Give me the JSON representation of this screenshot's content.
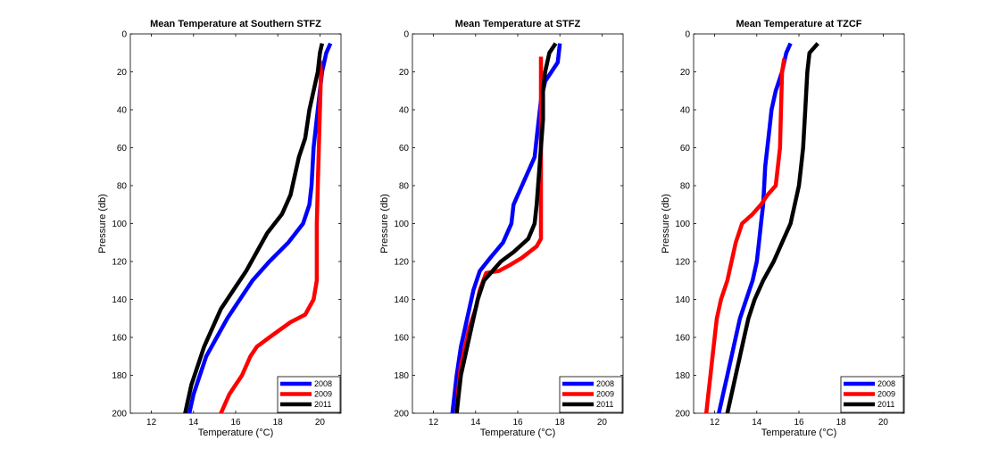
{
  "chart_data": [
    {
      "type": "line",
      "title": "Mean Temperature at Southern STFZ",
      "xlabel": "Temperature (°C)",
      "ylabel": "Pressure (db)",
      "xlim": [
        11,
        21
      ],
      "ylim": [
        0,
        200
      ],
      "y_reversed": true,
      "xticks": [
        12,
        14,
        16,
        18,
        20
      ],
      "yticks": [
        0,
        20,
        40,
        60,
        80,
        100,
        120,
        140,
        160,
        180,
        200
      ],
      "legend": "bottom-right",
      "series": [
        {
          "name": "2008",
          "color": "#0000ff",
          "points": [
            [
              20.5,
              5
            ],
            [
              20.3,
              10
            ],
            [
              20.1,
              20
            ],
            [
              20.0,
              30
            ],
            [
              19.9,
              40
            ],
            [
              19.7,
              60
            ],
            [
              19.6,
              80
            ],
            [
              19.5,
              90
            ],
            [
              19.2,
              100
            ],
            [
              18.5,
              110
            ],
            [
              17.6,
              120
            ],
            [
              16.8,
              130
            ],
            [
              16.2,
              140
            ],
            [
              15.6,
              150
            ],
            [
              15.1,
              160
            ],
            [
              14.6,
              170
            ],
            [
              14.3,
              180
            ],
            [
              14.0,
              190
            ],
            [
              13.8,
              200
            ]
          ]
        },
        {
          "name": "2009",
          "color": "#ff0000",
          "points": [
            [
              20.0,
              14
            ],
            [
              20.05,
              20
            ],
            [
              20.0,
              40
            ],
            [
              19.95,
              60
            ],
            [
              19.9,
              80
            ],
            [
              19.85,
              100
            ],
            [
              19.85,
              120
            ],
            [
              19.85,
              130
            ],
            [
              19.7,
              140
            ],
            [
              19.3,
              148
            ],
            [
              18.6,
              152
            ],
            [
              18.1,
              156
            ],
            [
              17.6,
              160
            ],
            [
              17.0,
              165
            ],
            [
              16.7,
              170
            ],
            [
              16.3,
              180
            ],
            [
              16.0,
              185
            ],
            [
              15.7,
              190
            ],
            [
              15.3,
              200
            ]
          ]
        },
        {
          "name": "2011",
          "color": "#000000",
          "points": [
            [
              20.1,
              5
            ],
            [
              20.0,
              10
            ],
            [
              19.9,
              20
            ],
            [
              19.7,
              30
            ],
            [
              19.5,
              40
            ],
            [
              19.3,
              55
            ],
            [
              19.0,
              65
            ],
            [
              18.8,
              75
            ],
            [
              18.6,
              85
            ],
            [
              18.2,
              95
            ],
            [
              17.5,
              105
            ],
            [
              17.0,
              115
            ],
            [
              16.5,
              125
            ],
            [
              15.9,
              135
            ],
            [
              15.3,
              145
            ],
            [
              14.9,
              155
            ],
            [
              14.5,
              165
            ],
            [
              14.2,
              175
            ],
            [
              13.9,
              185
            ],
            [
              13.7,
              195
            ],
            [
              13.6,
              200
            ]
          ]
        }
      ]
    },
    {
      "type": "line",
      "title": "Mean Temperature at STFZ",
      "xlabel": "Temperature (°C)",
      "ylabel": "Pressure (db)",
      "xlim": [
        11,
        21
      ],
      "ylim": [
        0,
        200
      ],
      "y_reversed": true,
      "xticks": [
        12,
        14,
        16,
        18,
        20
      ],
      "yticks": [
        0,
        20,
        40,
        60,
        80,
        100,
        120,
        140,
        160,
        180,
        200
      ],
      "legend": "bottom-right",
      "series": [
        {
          "name": "2008",
          "color": "#0000ff",
          "points": [
            [
              18.0,
              5
            ],
            [
              17.9,
              15
            ],
            [
              17.3,
              25
            ],
            [
              17.1,
              35
            ],
            [
              17.0,
              45
            ],
            [
              16.9,
              55
            ],
            [
              16.8,
              65
            ],
            [
              16.4,
              75
            ],
            [
              16.0,
              85
            ],
            [
              15.8,
              90
            ],
            [
              15.7,
              100
            ],
            [
              15.3,
              110
            ],
            [
              14.7,
              118
            ],
            [
              14.2,
              125
            ],
            [
              13.9,
              135
            ],
            [
              13.7,
              145
            ],
            [
              13.5,
              155
            ],
            [
              13.3,
              165
            ],
            [
              13.1,
              180
            ],
            [
              13.0,
              190
            ],
            [
              12.9,
              200
            ]
          ]
        },
        {
          "name": "2009",
          "color": "#ff0000",
          "points": [
            [
              17.1,
              12
            ],
            [
              17.1,
              40
            ],
            [
              17.1,
              60
            ],
            [
              17.1,
              80
            ],
            [
              17.1,
              100
            ],
            [
              17.1,
              108
            ],
            [
              16.9,
              112
            ],
            [
              16.2,
              118
            ],
            [
              15.6,
              122
            ],
            [
              15.1,
              125
            ],
            [
              14.5,
              126
            ],
            [
              14.2,
              135
            ],
            [
              14.0,
              145
            ],
            [
              13.7,
              155
            ],
            [
              13.5,
              165
            ],
            [
              13.3,
              175
            ],
            [
              13.2,
              185
            ],
            [
              13.1,
              200
            ]
          ]
        },
        {
          "name": "2011",
          "color": "#000000",
          "points": [
            [
              17.8,
              5
            ],
            [
              17.5,
              10
            ],
            [
              17.3,
              20
            ],
            [
              17.2,
              30
            ],
            [
              17.2,
              45
            ],
            [
              17.1,
              60
            ],
            [
              17.0,
              75
            ],
            [
              16.9,
              90
            ],
            [
              16.8,
              100
            ],
            [
              16.5,
              108
            ],
            [
              15.8,
              115
            ],
            [
              15.2,
              120
            ],
            [
              14.8,
              125
            ],
            [
              14.4,
              130
            ],
            [
              14.1,
              140
            ],
            [
              13.9,
              150
            ],
            [
              13.7,
              160
            ],
            [
              13.5,
              170
            ],
            [
              13.3,
              180
            ],
            [
              13.2,
              190
            ],
            [
              13.1,
              200
            ]
          ]
        }
      ]
    },
    {
      "type": "line",
      "title": "Mean Temperature at TZCF",
      "xlabel": "Temperature (°C)",
      "ylabel": "Pressure (db)",
      "xlim": [
        11,
        21
      ],
      "ylim": [
        0,
        200
      ],
      "y_reversed": true,
      "xticks": [
        12,
        14,
        16,
        18,
        20
      ],
      "yticks": [
        0,
        20,
        40,
        60,
        80,
        100,
        120,
        140,
        160,
        180,
        200
      ],
      "legend": "bottom-right",
      "series": [
        {
          "name": "2008",
          "color": "#0000ff",
          "points": [
            [
              15.6,
              5
            ],
            [
              15.4,
              10
            ],
            [
              15.2,
              20
            ],
            [
              14.9,
              30
            ],
            [
              14.7,
              40
            ],
            [
              14.6,
              50
            ],
            [
              14.5,
              60
            ],
            [
              14.4,
              70
            ],
            [
              14.35,
              80
            ],
            [
              14.3,
              90
            ],
            [
              14.2,
              100
            ],
            [
              14.1,
              110
            ],
            [
              14.0,
              120
            ],
            [
              13.8,
              130
            ],
            [
              13.5,
              140
            ],
            [
              13.2,
              150
            ],
            [
              13.0,
              160
            ],
            [
              12.8,
              170
            ],
            [
              12.6,
              180
            ],
            [
              12.4,
              190
            ],
            [
              12.2,
              200
            ]
          ]
        },
        {
          "name": "2009",
          "color": "#ff0000",
          "points": [
            [
              15.3,
              13
            ],
            [
              15.2,
              20
            ],
            [
              15.15,
              40
            ],
            [
              15.1,
              60
            ],
            [
              15.0,
              70
            ],
            [
              14.9,
              80
            ],
            [
              14.5,
              85
            ],
            [
              14.2,
              90
            ],
            [
              13.8,
              95
            ],
            [
              13.3,
              100
            ],
            [
              13.0,
              110
            ],
            [
              12.8,
              120
            ],
            [
              12.6,
              130
            ],
            [
              12.3,
              140
            ],
            [
              12.1,
              150
            ],
            [
              12.0,
              160
            ],
            [
              11.9,
              170
            ],
            [
              11.8,
              180
            ],
            [
              11.7,
              190
            ],
            [
              11.6,
              200
            ]
          ]
        },
        {
          "name": "2011",
          "color": "#000000",
          "points": [
            [
              16.9,
              5
            ],
            [
              16.5,
              10
            ],
            [
              16.4,
              20
            ],
            [
              16.3,
              40
            ],
            [
              16.2,
              60
            ],
            [
              16.1,
              70
            ],
            [
              16.0,
              80
            ],
            [
              15.8,
              90
            ],
            [
              15.6,
              100
            ],
            [
              15.2,
              110
            ],
            [
              14.8,
              120
            ],
            [
              14.3,
              130
            ],
            [
              13.9,
              140
            ],
            [
              13.6,
              150
            ],
            [
              13.4,
              160
            ],
            [
              13.2,
              170
            ],
            [
              13.0,
              180
            ],
            [
              12.8,
              190
            ],
            [
              12.6,
              200
            ]
          ]
        }
      ]
    }
  ]
}
